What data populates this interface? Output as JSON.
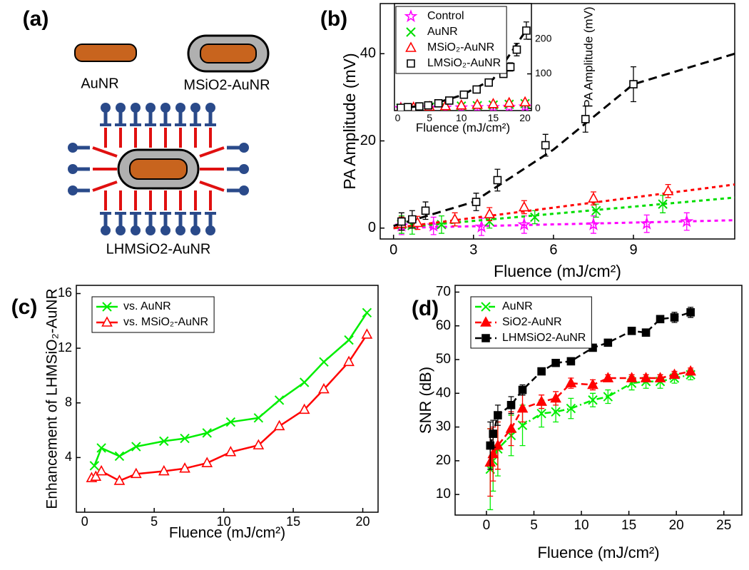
{
  "panel_labels": [
    "(a)",
    "(b)",
    "(c)",
    "(d)"
  ],
  "diagram": {
    "labels": [
      "AuNR",
      "MSiO2-AuNR",
      "LHMSiO2-AuNR"
    ]
  },
  "chart_data": [
    {
      "type": "scatter",
      "x_label": "Fluence (mJ/cm²)",
      "y_label": "PA Amplitude (mV)",
      "xlim": [
        -0.5,
        12.8
      ],
      "ylim": [
        -2.5,
        51.5
      ],
      "xticks": [
        0,
        3,
        6,
        9
      ],
      "yticks": [
        0,
        20,
        40
      ],
      "legend": "upper left",
      "series": [
        {
          "name": "Control",
          "color": "#ff00ff",
          "marker": "star",
          "x": [
            0.3,
            1.5,
            3.3,
            4.9,
            7.5,
            9.5,
            11.0
          ],
          "values": [
            0.5,
            0.5,
            0.3,
            0.8,
            0.8,
            1,
            1.5
          ],
          "errors": [
            2,
            2,
            2,
            2,
            2,
            2,
            2
          ],
          "fit_x": [
            0,
            12.8
          ],
          "fit_values": [
            0,
            1.8
          ]
        },
        {
          "name": "AuNR",
          "color": "#00dd00",
          "marker": "x",
          "x": [
            0.3,
            0.7,
            1.8,
            3.6,
            5.3,
            7.6,
            10.1
          ],
          "values": [
            0.8,
            0.6,
            0.8,
            1.5,
            2.5,
            4,
            5.5
          ],
          "errors": [
            2,
            2,
            2,
            1.5,
            1.5,
            1.5,
            2
          ],
          "fit_x": [
            0,
            12.8
          ],
          "fit_values": [
            0,
            7
          ]
        },
        {
          "name": "MSiO₂-AuNR",
          "color": "#ff0000",
          "marker": "open-triangle",
          "x": [
            0.3,
            0.9,
            2.3,
            3.6,
            4.9,
            7.5,
            10.3
          ],
          "values": [
            1,
            1.2,
            2,
            3.2,
            4.8,
            6.8,
            8.5
          ],
          "errors": [
            1.5,
            1.5,
            1.5,
            1.5,
            1.5,
            1.5,
            1.5
          ],
          "fit_x": [
            0,
            12.8
          ],
          "fit_values": [
            0,
            10
          ]
        },
        {
          "name": "LMSiO₂-AuNR",
          "color": "#000000",
          "marker": "open-square",
          "x": [
            0.3,
            0.7,
            1.2,
            3.1,
            3.9,
            5.7,
            7.2,
            9.0
          ],
          "values": [
            1.5,
            2,
            4,
            6,
            11,
            19,
            25,
            33
          ],
          "errors": [
            2,
            2,
            2,
            2,
            2.5,
            2.5,
            3,
            4
          ],
          "fit_x": [
            0,
            3,
            6,
            9,
            12.8
          ],
          "fit_values": [
            0.5,
            6,
            18,
            33,
            40
          ]
        }
      ]
    },
    {
      "type": "scatter",
      "x_label": "Fluence (mJ/cm²)",
      "y2_label": "PA Amplitude (mV)",
      "xlim": [
        -0.5,
        21
      ],
      "y2lim": [
        -6,
        303
      ],
      "xticks": [
        0,
        5,
        10,
        15,
        20
      ],
      "y2ticks": [
        0,
        100,
        200
      ],
      "series": [
        {
          "color": "#ff00ff",
          "marker": "star",
          "axis": "y2",
          "x": [
            0.5,
            2.5,
            5,
            7.5,
            10,
            12.5,
            15,
            17.5,
            20
          ],
          "values": [
            0.5,
            1,
            1.5,
            2,
            2.5,
            3,
            3.5,
            4,
            5
          ]
        },
        {
          "color": "#00dd00",
          "marker": "x",
          "axis": "y2",
          "x": [
            0.5,
            2.5,
            5,
            7.5,
            10,
            12.5,
            15,
            17.5,
            20
          ],
          "values": [
            1,
            2,
            4,
            5,
            7,
            8,
            10,
            12,
            14
          ]
        },
        {
          "color": "#ff0000",
          "marker": "open-triangle",
          "axis": "y2",
          "x": [
            0.5,
            2.5,
            5,
            7.5,
            10,
            12.5,
            15,
            17.5,
            20
          ],
          "values": [
            1,
            3,
            5,
            7,
            9,
            11,
            13,
            16,
            18
          ]
        },
        {
          "color": "#000000",
          "marker": "open-square",
          "axis": "y2",
          "x": [
            0.5,
            1.6,
            3.4,
            4.8,
            6.4,
            8.1,
            10.4,
            12.4,
            14.3,
            16.6,
            17.7,
            18.7,
            20.2
          ],
          "values": [
            2,
            4,
            6,
            9,
            15,
            23,
            40,
            55,
            75,
            100,
            120,
            170,
            225
          ],
          "errors": [
            2,
            2,
            2,
            3,
            3,
            4,
            5,
            6,
            8,
            10,
            12,
            18,
            25
          ],
          "fit_x": [
            0,
            5,
            10,
            15,
            20.5
          ],
          "fit_values": [
            0,
            10,
            38,
            85,
            235
          ]
        }
      ]
    },
    {
      "type": "line",
      "x_label": "Fluence (mJ/cm²)",
      "y_label": "Enhancement of LHMSiO₂-AuNR",
      "xlim": [
        -0.6,
        21.1
      ],
      "ylim": [
        0,
        16.6
      ],
      "xticks": [
        0,
        5,
        10,
        15,
        20
      ],
      "yticks": [
        4,
        8,
        12,
        16
      ],
      "legend": "upper left",
      "series": [
        {
          "name": "vs. AuNR",
          "color": "#00ee00",
          "marker": "x",
          "linestyle": "solid",
          "x": [
            0.7,
            1.2,
            2.5,
            3.7,
            5.7,
            7.2,
            8.8,
            10.5,
            12.5,
            14,
            15.8,
            17.2,
            19,
            20.3
          ],
          "values": [
            3.4,
            4.7,
            4.1,
            4.8,
            5.2,
            5.4,
            5.8,
            6.6,
            6.9,
            8.2,
            9.5,
            11,
            12.6,
            14.6
          ]
        },
        {
          "name": "vs. MSiO₂-AuNR",
          "color": "#ff0000",
          "marker": "open-triangle",
          "linestyle": "solid",
          "x": [
            0.5,
            0.8,
            1.2,
            2.5,
            3.7,
            5.7,
            7.2,
            8.8,
            10.5,
            12.5,
            14,
            15.8,
            17.2,
            19,
            20.3
          ],
          "values": [
            2.5,
            2.6,
            3,
            2.3,
            2.8,
            3,
            3.2,
            3.6,
            4.4,
            4.9,
            6.3,
            7.5,
            9,
            11,
            13
          ]
        }
      ]
    },
    {
      "type": "line",
      "x_label": "Fluence (mJ/cm²)",
      "y_label": "SNR (dB)",
      "xlim": [
        -3.3,
        26.9
      ],
      "ylim": [
        3.9,
        72
      ],
      "xticks": [
        0,
        5,
        10,
        15,
        20,
        25
      ],
      "yticks": [
        10,
        20,
        30,
        40,
        50,
        60,
        70
      ],
      "legend": "upper left",
      "series": [
        {
          "name": "AuNR",
          "color": "#00ee00",
          "marker": "x",
          "linestyle": "dashdot",
          "x": [
            0.4,
            0.7,
            1.2,
            2.6,
            3.8,
            5.8,
            7.3,
            8.9,
            11.2,
            12.8,
            15.3,
            16.8,
            18.3,
            19.8,
            21.5
          ],
          "values": [
            17.5,
            20,
            23.5,
            27.5,
            30.5,
            34,
            34.5,
            35.5,
            38,
            39,
            43,
            43.5,
            43.5,
            44.5,
            45.5
          ],
          "errors": [
            12,
            9,
            8,
            6,
            6,
            4,
            3,
            3,
            2,
            2,
            2,
            2,
            2,
            1.5,
            1.5
          ]
        },
        {
          "name": "SiO2-AuNR",
          "color": "#ff0000",
          "marker": "triangle",
          "linestyle": "dashed",
          "x": [
            0.4,
            0.7,
            1.2,
            2.6,
            3.8,
            5.8,
            7.3,
            8.9,
            11.2,
            12.8,
            15.3,
            16.8,
            18.3,
            19.8,
            21.5
          ],
          "values": [
            19.5,
            22,
            24.5,
            29.5,
            35.5,
            37.5,
            38.5,
            43,
            42.5,
            44.5,
            44.5,
            44.5,
            44.5,
            45.5,
            46.5
          ],
          "errors": [
            10,
            8,
            7,
            5,
            4,
            2,
            2,
            1.5,
            1.5,
            1,
            1,
            1,
            1,
            1,
            1
          ]
        },
        {
          "name": "LHMSiO2-AuNR",
          "color": "#000000",
          "marker": "square",
          "linestyle": "dashed",
          "x": [
            0.4,
            0.7,
            1.2,
            2.6,
            3.8,
            5.8,
            7.3,
            8.9,
            11.2,
            12.8,
            15.3,
            16.8,
            18.3,
            19.8,
            21.5
          ],
          "values": [
            24.5,
            28,
            33.5,
            36.5,
            41,
            46.5,
            49,
            49.5,
            53.5,
            55,
            58.5,
            58,
            62,
            62.5,
            64
          ],
          "errors": [
            7,
            4,
            3,
            2.5,
            1.5,
            1,
            1,
            1,
            1,
            1,
            1,
            1,
            1,
            1.5,
            1.5
          ]
        }
      ]
    }
  ]
}
